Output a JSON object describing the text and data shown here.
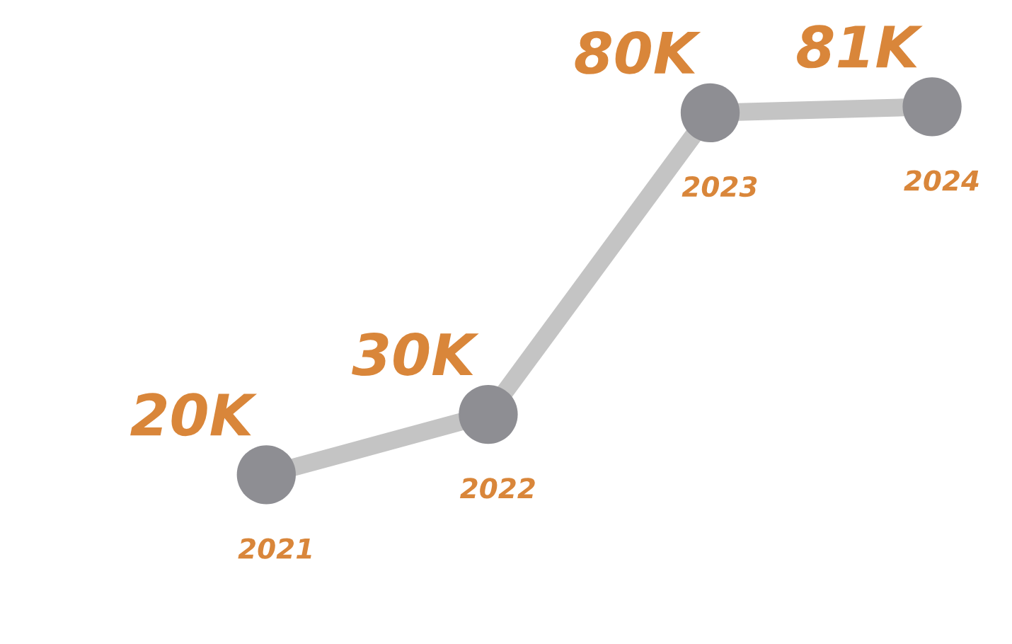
{
  "chart_data": {
    "type": "line",
    "categories": [
      "2021",
      "2022",
      "2023",
      "2024"
    ],
    "series": [
      {
        "color": "#c4c4c4",
        "values": [
          20000,
          30000,
          80000,
          81000
        ],
        "value_labels": [
          "20K",
          "30K",
          "80K",
          "81K"
        ]
      }
    ],
    "marker": "circle"
  }
}
